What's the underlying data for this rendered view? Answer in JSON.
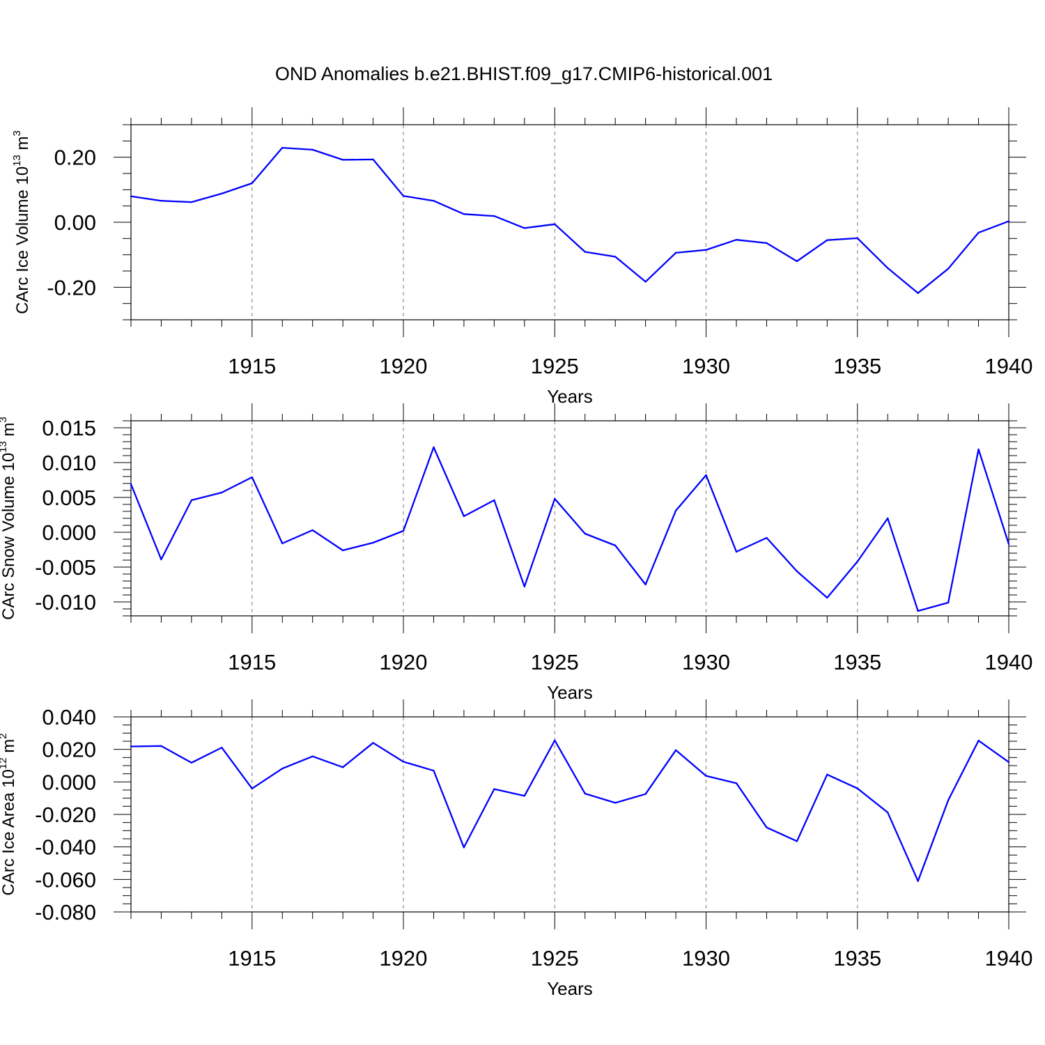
{
  "chart_data": [
    {
      "type": "line",
      "title": "OND Anomalies b.e21.BHIST.f09_g17.CMIP6-historical.001",
      "xlabel": "Years",
      "ylabel": {
        "base": "CArc Ice Volume 10",
        "exp1": "13",
        "unit": " m",
        "exp2": "3"
      },
      "xlim": [
        1911,
        1940
      ],
      "ylim": [
        -0.3,
        0.3
      ],
      "x_ticks": [
        1915,
        1920,
        1925,
        1930,
        1935,
        1940
      ],
      "y_ticks": [
        -0.2,
        0.0,
        0.2
      ],
      "y_tick_labels": [
        "-0.20",
        "0.00",
        "0.20"
      ],
      "y_minor_step": 0.05,
      "grid": "vertical-dashed-at-major-x",
      "line_color": "#0000ff",
      "series": [
        {
          "name": "CArc Ice Volume",
          "x": [
            1911,
            1912,
            1913,
            1914,
            1915,
            1916,
            1917,
            1918,
            1919,
            1920,
            1921,
            1922,
            1923,
            1924,
            1925,
            1926,
            1927,
            1928,
            1929,
            1930,
            1931,
            1932,
            1933,
            1934,
            1935,
            1936,
            1937,
            1938,
            1939,
            1940
          ],
          "values": [
            0.08,
            0.066,
            0.062,
            0.088,
            0.12,
            0.229,
            0.223,
            0.192,
            0.193,
            0.081,
            0.066,
            0.025,
            0.019,
            -0.018,
            -0.006,
            -0.091,
            -0.106,
            -0.183,
            -0.094,
            -0.085,
            -0.054,
            -0.064,
            -0.12,
            -0.055,
            -0.049,
            -0.141,
            -0.218,
            -0.143,
            -0.032,
            0.003
          ]
        }
      ]
    },
    {
      "type": "line",
      "title": "",
      "xlabel": "Years",
      "ylabel": {
        "base": "CArc Snow Volume 10",
        "exp1": "13",
        "unit": " m",
        "exp2": "3"
      },
      "xlim": [
        1911,
        1940
      ],
      "ylim": [
        -0.012,
        0.016
      ],
      "x_ticks": [
        1915,
        1920,
        1925,
        1930,
        1935,
        1940
      ],
      "y_ticks": [
        -0.01,
        -0.005,
        0.0,
        0.005,
        0.01,
        0.015
      ],
      "y_tick_labels": [
        "-0.010",
        "-0.005",
        "0.000",
        "0.005",
        "0.010",
        "0.015"
      ],
      "y_minor_step": 0.001,
      "grid": "vertical-dashed-at-major-x",
      "line_color": "#0000ff",
      "series": [
        {
          "name": "CArc Snow Volume",
          "x": [
            1911,
            1912,
            1913,
            1914,
            1915,
            1916,
            1917,
            1918,
            1919,
            1920,
            1921,
            1922,
            1923,
            1924,
            1925,
            1926,
            1927,
            1928,
            1929,
            1930,
            1931,
            1932,
            1933,
            1934,
            1935,
            1936,
            1937,
            1938,
            1939,
            1940
          ],
          "values": [
            0.0069,
            -0.0039,
            0.0046,
            0.0057,
            0.0079,
            -0.0016,
            0.0003,
            -0.0026,
            -0.0015,
            0.0002,
            0.0122,
            0.0023,
            0.0046,
            -0.0078,
            0.0048,
            -0.0002,
            -0.0019,
            -0.0075,
            0.0031,
            0.0082,
            -0.0028,
            -0.0008,
            -0.0056,
            -0.0094,
            -0.0042,
            0.002,
            -0.0113,
            -0.0101,
            0.0119,
            -0.0017
          ]
        }
      ]
    },
    {
      "type": "line",
      "title": "",
      "xlabel": "Years",
      "ylabel": {
        "base": "CArc Ice Area 10",
        "exp1": "12",
        "unit": " m",
        "exp2": "2"
      },
      "xlim": [
        1911,
        1940
      ],
      "ylim": [
        -0.08,
        0.04
      ],
      "x_ticks": [
        1915,
        1920,
        1925,
        1930,
        1935,
        1940
      ],
      "y_ticks": [
        -0.08,
        -0.06,
        -0.04,
        -0.02,
        0.0,
        0.02,
        0.04
      ],
      "y_tick_labels": [
        "-0.080",
        "-0.060",
        "-0.040",
        "-0.020",
        "0.000",
        "0.020",
        "0.040"
      ],
      "y_minor_step": 0.005,
      "grid": "vertical-dashed-at-major-x",
      "line_color": "#0000ff",
      "series": [
        {
          "name": "CArc Ice Area",
          "x": [
            1911,
            1912,
            1913,
            1914,
            1915,
            1916,
            1917,
            1918,
            1919,
            1920,
            1921,
            1922,
            1923,
            1924,
            1925,
            1926,
            1927,
            1928,
            1929,
            1930,
            1931,
            1932,
            1933,
            1934,
            1935,
            1936,
            1937,
            1938,
            1939,
            1940
          ],
          "values": [
            0.0218,
            0.0221,
            0.0118,
            0.0211,
            -0.0041,
            0.0082,
            0.0157,
            0.009,
            0.024,
            0.0124,
            0.0069,
            -0.0403,
            -0.0044,
            -0.0086,
            0.0255,
            -0.0072,
            -0.0129,
            -0.0075,
            0.0195,
            0.0037,
            -0.0008,
            -0.028,
            -0.0365,
            0.0045,
            -0.004,
            -0.0188,
            -0.061,
            -0.0113,
            0.0254,
            0.0122
          ]
        }
      ]
    }
  ]
}
